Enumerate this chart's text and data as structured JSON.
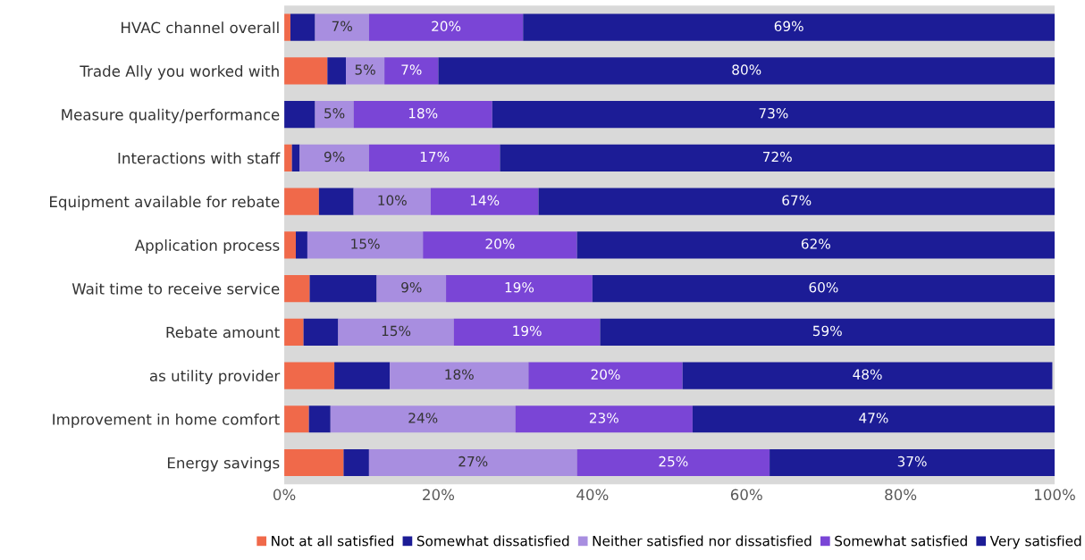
{
  "chart_data": {
    "type": "bar",
    "orientation": "horizontal",
    "stacked": true,
    "categories": [
      "HVAC channel overall",
      "Trade Ally you worked with",
      "Measure quality/performance",
      "Interactions with staff",
      "Equipment available for rebate",
      "Application process",
      "Wait time to receive service",
      "Rebate amount",
      "as utility provider",
      "Improvement in home comfort",
      "Energy savings"
    ],
    "series": [
      {
        "name": "Not at all satisfied",
        "color": "#f0694a",
        "values": [
          0.8,
          5.6,
          0,
          1,
          4.5,
          1.5,
          3.3,
          2.5,
          6.5,
          3.2,
          7.7
        ],
        "value_labels": [
          null,
          null,
          null,
          null,
          null,
          null,
          null,
          null,
          null,
          null,
          null
        ]
      },
      {
        "name": "Somewhat dissatisfied",
        "color": "#1c1c96",
        "values": [
          3.2,
          2.4,
          4,
          1,
          4.5,
          1.5,
          8.7,
          4.5,
          7.2,
          2.8,
          3.3
        ],
        "value_labels": [
          null,
          null,
          null,
          null,
          null,
          null,
          null,
          null,
          null,
          null,
          null
        ]
      },
      {
        "name": "Neither satisfied nor dissatisfied",
        "color": "#a88ee0",
        "values": [
          7,
          5,
          5,
          9,
          10,
          15,
          9,
          15,
          18,
          24,
          27
        ],
        "value_labels": [
          "7%",
          "5%",
          "5%",
          "9%",
          "10%",
          "15%",
          "9%",
          "15%",
          "18%",
          "24%",
          "27%"
        ]
      },
      {
        "name": "Somewhat satisfied",
        "color": "#7a45d6",
        "values": [
          20,
          7,
          18,
          17,
          14,
          20,
          19,
          19,
          20,
          23,
          25
        ],
        "value_labels": [
          "20%",
          "7%",
          "18%",
          "17%",
          "14%",
          "20%",
          "19%",
          "19%",
          "20%",
          "23%",
          "25%"
        ]
      },
      {
        "name": "Very satisfied",
        "color": "#1c1c96",
        "values": [
          69,
          80,
          73,
          72,
          67,
          62,
          60,
          59,
          48,
          47,
          37
        ],
        "value_labels": [
          "69%",
          "80%",
          "73%",
          "72%",
          "67%",
          "62%",
          "60%",
          "59%",
          "48%",
          "47%",
          "37%"
        ]
      }
    ],
    "xlim": [
      0,
      100
    ],
    "xticks": [
      {
        "value": 0,
        "label": "0%"
      },
      {
        "value": 20,
        "label": "20%"
      },
      {
        "value": 40,
        "label": "40%"
      },
      {
        "value": 60,
        "label": "60%"
      },
      {
        "value": 80,
        "label": "80%"
      },
      {
        "value": 100,
        "label": "100%"
      }
    ],
    "grid": false,
    "legend": "bottom"
  }
}
